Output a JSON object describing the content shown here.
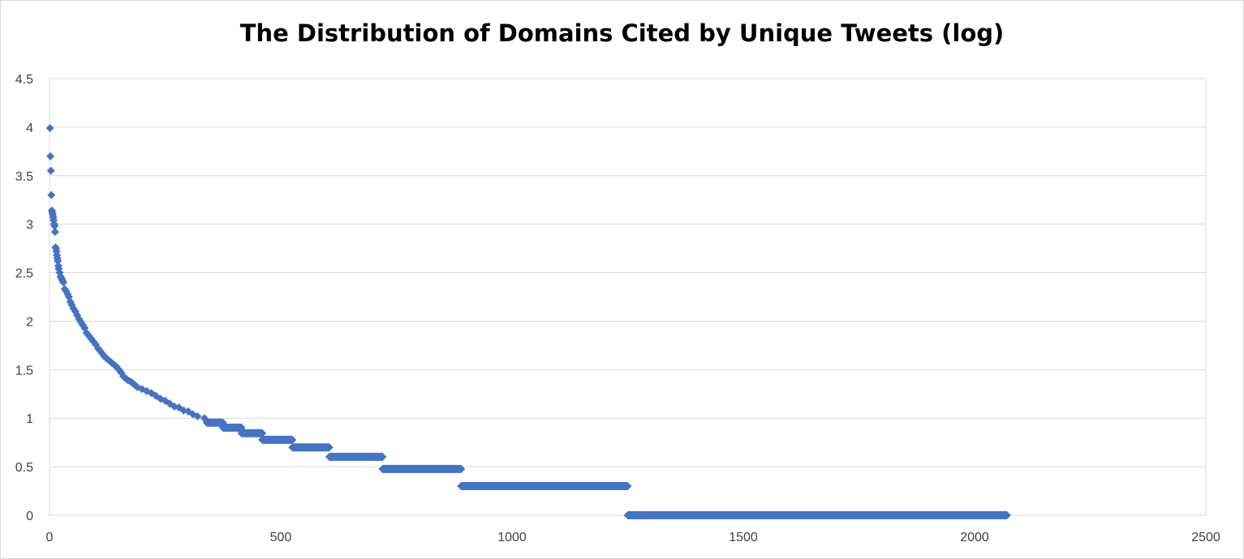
{
  "chart_data": {
    "type": "scatter",
    "title": "The Distribution of Domains Cited by Unique Tweets (log)",
    "xlabel": "",
    "ylabel": "",
    "xlim": [
      0,
      2500
    ],
    "ylim": [
      0,
      4.5
    ],
    "x_ticks": [
      "0",
      "500",
      "1000",
      "1500",
      "2000",
      "2500"
    ],
    "y_ticks": [
      "0",
      "0.5",
      "1",
      "1.5",
      "2",
      "2.5",
      "3",
      "3.5",
      "4",
      "4.5"
    ],
    "grid": true,
    "legend": "none",
    "marker": "diamond",
    "color": "#4472C4",
    "series": [
      {
        "points": [
          [
            1,
            3.99
          ],
          [
            2,
            3.7
          ],
          [
            3,
            3.55
          ],
          [
            4,
            3.3
          ],
          [
            5,
            3.14
          ],
          [
            6,
            3.12
          ],
          [
            7,
            3.1
          ],
          [
            8,
            3.07
          ],
          [
            9,
            3.04
          ],
          [
            10,
            3.0
          ],
          [
            11,
            2.98
          ],
          [
            12,
            2.92
          ],
          [
            13,
            2.76
          ],
          [
            14,
            2.75
          ],
          [
            15,
            2.72
          ],
          [
            16,
            2.68
          ],
          [
            17,
            2.65
          ],
          [
            18,
            2.62
          ],
          [
            19,
            2.57
          ],
          [
            20,
            2.54
          ],
          [
            22,
            2.5
          ],
          [
            24,
            2.46
          ],
          [
            26,
            2.44
          ],
          [
            28,
            2.42
          ],
          [
            30,
            2.4
          ],
          [
            33,
            2.33
          ],
          [
            36,
            2.31
          ],
          [
            39,
            2.28
          ],
          [
            42,
            2.25
          ],
          [
            45,
            2.2
          ],
          [
            48,
            2.17
          ],
          [
            52,
            2.13
          ],
          [
            56,
            2.1
          ],
          [
            60,
            2.06
          ],
          [
            64,
            2.02
          ],
          [
            68,
            1.99
          ],
          [
            72,
            1.96
          ],
          [
            76,
            1.93
          ],
          [
            80,
            1.88
          ],
          [
            85,
            1.85
          ],
          [
            90,
            1.82
          ],
          [
            95,
            1.79
          ],
          [
            100,
            1.76
          ],
          [
            105,
            1.72
          ],
          [
            110,
            1.69
          ],
          [
            115,
            1.66
          ],
          [
            120,
            1.63
          ],
          [
            125,
            1.61
          ],
          [
            130,
            1.59
          ],
          [
            135,
            1.57
          ],
          [
            140,
            1.55
          ],
          [
            145,
            1.53
          ],
          [
            150,
            1.5
          ],
          [
            155,
            1.47
          ],
          [
            160,
            1.43
          ],
          [
            165,
            1.41
          ],
          [
            170,
            1.39
          ],
          [
            175,
            1.38
          ],
          [
            180,
            1.36
          ],
          [
            185,
            1.34
          ],
          [
            190,
            1.32
          ],
          [
            200,
            1.3
          ],
          [
            210,
            1.28
          ],
          [
            220,
            1.26
          ],
          [
            230,
            1.23
          ],
          [
            240,
            1.2
          ],
          [
            250,
            1.18
          ],
          [
            260,
            1.15
          ],
          [
            270,
            1.12
          ],
          [
            280,
            1.11
          ],
          [
            290,
            1.08
          ],
          [
            300,
            1.07
          ],
          [
            310,
            1.04
          ],
          [
            320,
            1.02
          ],
          [
            335,
            1.0
          ]
        ],
        "runs": [
          {
            "y": 0.954,
            "x_start": 340,
            "x_end": 375
          },
          {
            "y": 0.903,
            "x_start": 375,
            "x_end": 415
          },
          {
            "y": 0.845,
            "x_start": 415,
            "x_end": 460
          },
          {
            "y": 0.778,
            "x_start": 460,
            "x_end": 525
          },
          {
            "y": 0.699,
            "x_start": 525,
            "x_end": 605
          },
          {
            "y": 0.602,
            "x_start": 605,
            "x_end": 720
          },
          {
            "y": 0.477,
            "x_start": 720,
            "x_end": 890
          },
          {
            "y": 0.301,
            "x_start": 890,
            "x_end": 1250
          },
          {
            "y": 0.0,
            "x_start": 1250,
            "x_end": 2070
          }
        ]
      }
    ]
  }
}
